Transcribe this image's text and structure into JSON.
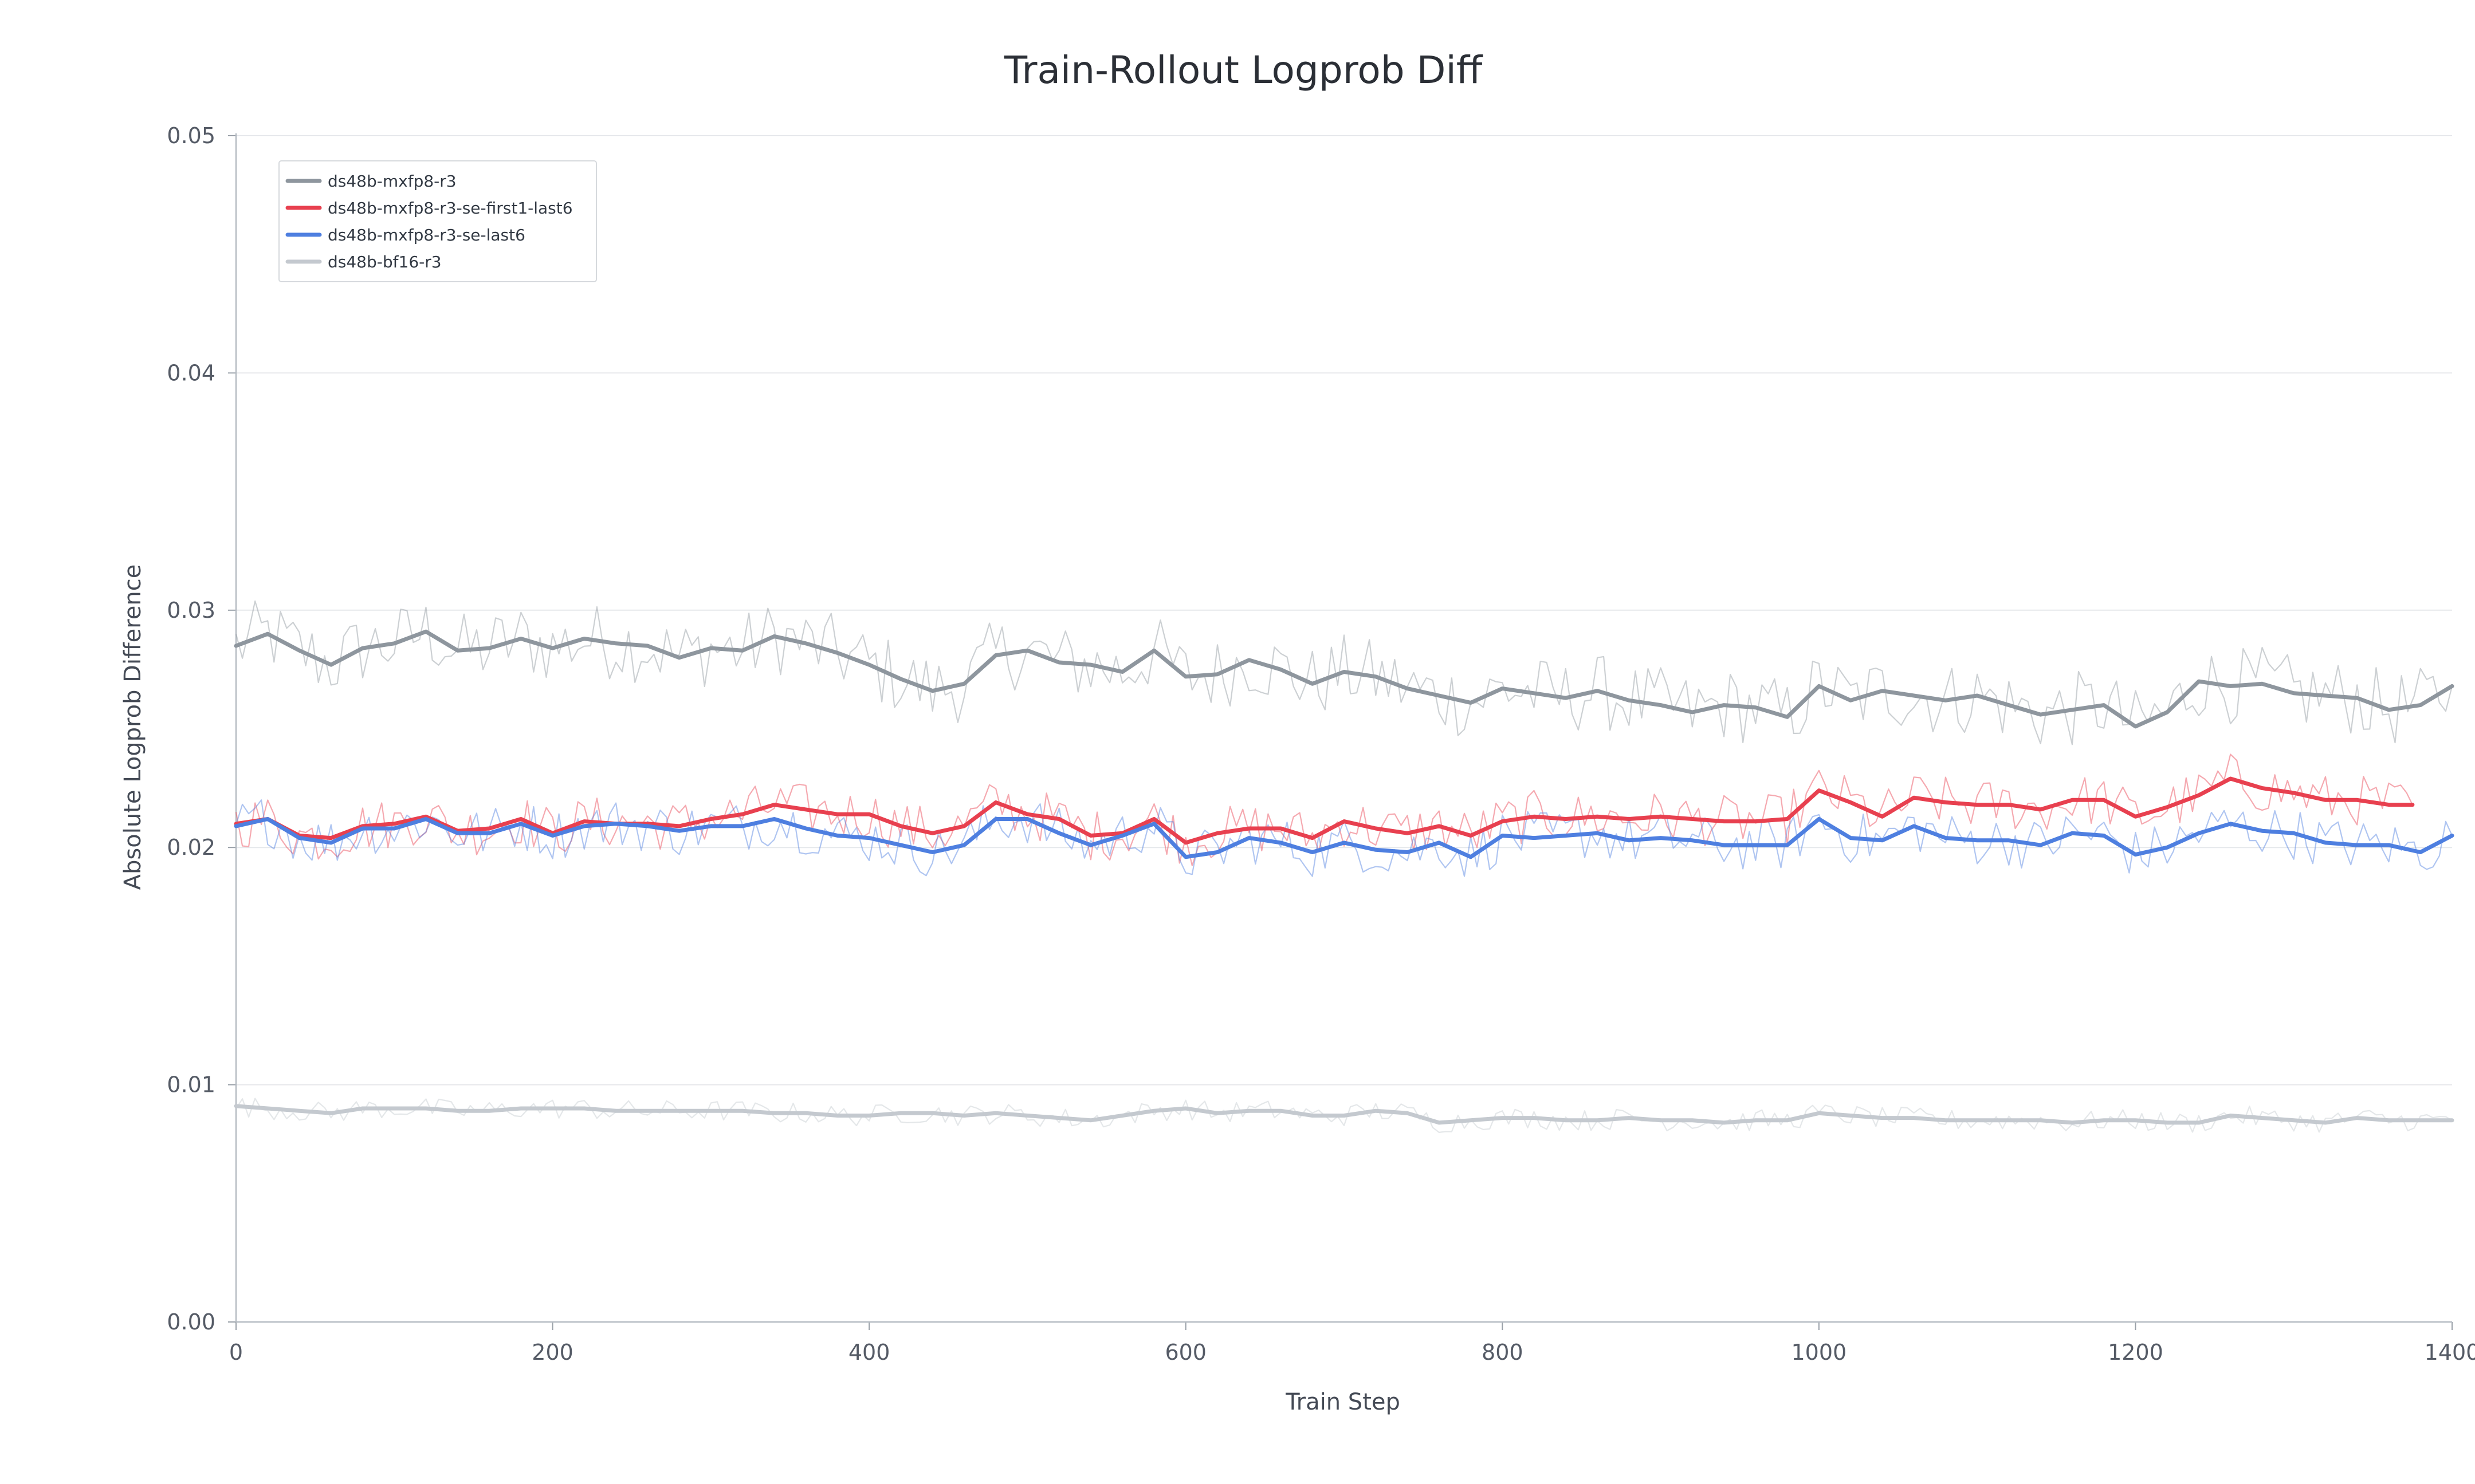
{
  "chart_data": {
    "type": "line",
    "title": "Train-Rollout Logprob Diff",
    "xlabel": "Train Step",
    "ylabel": "Absolute Logprob Difference",
    "xlim": [
      0,
      1400
    ],
    "ylim": [
      0,
      0.05
    ],
    "x_ticks": [
      0,
      200,
      400,
      600,
      800,
      1000,
      1200,
      1400
    ],
    "x_tick_labels": [
      "0",
      "200",
      "400",
      "600",
      "800",
      "1000",
      "1200",
      "1400"
    ],
    "y_ticks": [
      0,
      0.01,
      0.02,
      0.03,
      0.04,
      0.05
    ],
    "y_tick_labels": [
      "0.00",
      "0.01",
      "0.02",
      "0.03",
      "0.04",
      "0.05"
    ],
    "grid": "horizontal",
    "legend_position": "top-left",
    "series": [
      {
        "name": "ds48b-mxfp8-r3",
        "color": "#8e969e",
        "x": [
          0,
          20,
          40,
          60,
          80,
          100,
          120,
          140,
          160,
          180,
          200,
          220,
          240,
          260,
          280,
          300,
          320,
          340,
          360,
          380,
          400,
          420,
          440,
          460,
          480,
          500,
          520,
          540,
          560,
          580,
          600,
          620,
          640,
          660,
          680,
          700,
          720,
          740,
          760,
          780,
          800,
          820,
          840,
          860,
          880,
          900,
          920,
          940,
          960,
          980,
          1000,
          1020,
          1040,
          1060,
          1080,
          1100,
          1120,
          1140,
          1160,
          1180,
          1200,
          1220,
          1240,
          1260,
          1280,
          1300,
          1320,
          1340,
          1360,
          1380,
          1400
        ],
        "values": [
          0.0285,
          0.029,
          0.0283,
          0.0277,
          0.0284,
          0.0286,
          0.0291,
          0.0283,
          0.0284,
          0.0288,
          0.0284,
          0.0288,
          0.0286,
          0.0285,
          0.028,
          0.0284,
          0.0283,
          0.0289,
          0.0286,
          0.0282,
          0.0277,
          0.0271,
          0.0266,
          0.0269,
          0.0281,
          0.0283,
          0.0278,
          0.0277,
          0.0274,
          0.0283,
          0.0272,
          0.0273,
          0.0279,
          0.0275,
          0.0269,
          0.0274,
          0.0272,
          0.0267,
          0.0264,
          0.0261,
          0.0267,
          0.0265,
          0.0263,
          0.0266,
          0.0262,
          0.026,
          0.0257,
          0.026,
          0.0259,
          0.0255,
          0.0268,
          0.0262,
          0.0266,
          0.0264,
          0.0262,
          0.0264,
          0.026,
          0.0256,
          0.0258,
          0.026,
          0.0251,
          0.0257,
          0.027,
          0.0268,
          0.0269,
          0.0265,
          0.0264,
          0.0263,
          0.0258,
          0.026,
          0.0268
        ]
      },
      {
        "name": "ds48b-mxfp8-r3-se-first1-last6",
        "color": "#e8404f",
        "x": [
          0,
          20,
          40,
          60,
          80,
          100,
          120,
          140,
          160,
          180,
          200,
          220,
          240,
          260,
          280,
          300,
          320,
          340,
          360,
          380,
          400,
          420,
          440,
          460,
          480,
          500,
          520,
          540,
          560,
          580,
          600,
          620,
          640,
          660,
          680,
          700,
          720,
          740,
          760,
          780,
          800,
          820,
          840,
          860,
          880,
          900,
          920,
          940,
          960,
          980,
          1000,
          1020,
          1040,
          1060,
          1080,
          1100,
          1120,
          1140,
          1160,
          1180,
          1200,
          1220,
          1240,
          1260,
          1280,
          1300,
          1320,
          1340,
          1360,
          1375
        ],
        "values": [
          0.021,
          0.0212,
          0.0205,
          0.0204,
          0.0209,
          0.021,
          0.0213,
          0.0207,
          0.0208,
          0.0212,
          0.0206,
          0.0211,
          0.021,
          0.021,
          0.0209,
          0.0212,
          0.0214,
          0.0218,
          0.0216,
          0.0214,
          0.0214,
          0.0209,
          0.0206,
          0.0209,
          0.0219,
          0.0214,
          0.0212,
          0.0205,
          0.0206,
          0.0212,
          0.0202,
          0.0206,
          0.0208,
          0.0208,
          0.0204,
          0.0211,
          0.0208,
          0.0206,
          0.0209,
          0.0205,
          0.0211,
          0.0213,
          0.0212,
          0.0213,
          0.0212,
          0.0213,
          0.0212,
          0.0211,
          0.0211,
          0.0212,
          0.0224,
          0.0219,
          0.0213,
          0.0221,
          0.0219,
          0.0218,
          0.0218,
          0.0216,
          0.022,
          0.022,
          0.0213,
          0.0217,
          0.0222,
          0.0229,
          0.0225,
          0.0223,
          0.022,
          0.022,
          0.0218,
          0.0218
        ]
      },
      {
        "name": "ds48b-mxfp8-r3-se-last6",
        "color": "#4e7fe0",
        "x": [
          0,
          20,
          40,
          60,
          80,
          100,
          120,
          140,
          160,
          180,
          200,
          220,
          240,
          260,
          280,
          300,
          320,
          340,
          360,
          380,
          400,
          420,
          440,
          460,
          480,
          500,
          520,
          540,
          560,
          580,
          600,
          620,
          640,
          660,
          680,
          700,
          720,
          740,
          760,
          780,
          800,
          820,
          840,
          860,
          880,
          900,
          920,
          940,
          960,
          980,
          1000,
          1020,
          1040,
          1060,
          1080,
          1100,
          1120,
          1140,
          1160,
          1180,
          1200,
          1220,
          1240,
          1260,
          1280,
          1300,
          1320,
          1340,
          1360,
          1380,
          1400
        ],
        "values": [
          0.0209,
          0.0212,
          0.0204,
          0.0202,
          0.0208,
          0.0208,
          0.0212,
          0.0206,
          0.0206,
          0.021,
          0.0205,
          0.0209,
          0.021,
          0.0209,
          0.0207,
          0.0209,
          0.0209,
          0.0212,
          0.0208,
          0.0205,
          0.0204,
          0.0201,
          0.0198,
          0.0201,
          0.0212,
          0.0212,
          0.0206,
          0.0201,
          0.0205,
          0.021,
          0.0196,
          0.0198,
          0.0204,
          0.0202,
          0.0198,
          0.0202,
          0.0199,
          0.0198,
          0.0202,
          0.0196,
          0.0205,
          0.0204,
          0.0205,
          0.0206,
          0.0203,
          0.0204,
          0.0203,
          0.0201,
          0.0201,
          0.0201,
          0.0212,
          0.0204,
          0.0203,
          0.0209,
          0.0204,
          0.0203,
          0.0203,
          0.0201,
          0.0206,
          0.0205,
          0.0197,
          0.02,
          0.0206,
          0.021,
          0.0207,
          0.0206,
          0.0202,
          0.0201,
          0.0201,
          0.0198,
          0.0205
        ]
      },
      {
        "name": "ds48b-bf16-r3",
        "color": "#c4c9cf",
        "x": [
          0,
          20,
          40,
          60,
          80,
          100,
          120,
          140,
          160,
          180,
          200,
          220,
          240,
          260,
          280,
          300,
          320,
          340,
          360,
          380,
          400,
          420,
          440,
          460,
          480,
          500,
          520,
          540,
          560,
          580,
          600,
          620,
          640,
          660,
          680,
          700,
          720,
          740,
          760,
          780,
          800,
          820,
          840,
          860,
          880,
          900,
          920,
          940,
          960,
          980,
          1000,
          1020,
          1040,
          1060,
          1080,
          1100,
          1120,
          1140,
          1160,
          1180,
          1200,
          1220,
          1240,
          1260,
          1280,
          1300,
          1320,
          1340,
          1360,
          1380,
          1400
        ],
        "values": [
          0.0091,
          0.009,
          0.0089,
          0.0088,
          0.009,
          0.009,
          0.009,
          0.0089,
          0.0089,
          0.009,
          0.009,
          0.009,
          0.0089,
          0.0089,
          0.0089,
          0.0089,
          0.0089,
          0.0088,
          0.0088,
          0.0087,
          0.0087,
          0.0088,
          0.0088,
          0.0087,
          0.0088,
          0.0087,
          0.0086,
          0.0085,
          0.0087,
          0.0089,
          0.009,
          0.0088,
          0.0089,
          0.0089,
          0.0087,
          0.0087,
          0.0089,
          0.0088,
          0.0084,
          0.0085,
          0.0086,
          0.0086,
          0.0085,
          0.0085,
          0.0086,
          0.0085,
          0.0085,
          0.0084,
          0.0085,
          0.0085,
          0.0088,
          0.0087,
          0.0086,
          0.0086,
          0.0085,
          0.0085,
          0.0085,
          0.0085,
          0.0084,
          0.0085,
          0.0085,
          0.0084,
          0.0084,
          0.0087,
          0.0086,
          0.0085,
          0.0084,
          0.0086,
          0.0085,
          0.0085,
          0.0085
        ]
      }
    ]
  }
}
